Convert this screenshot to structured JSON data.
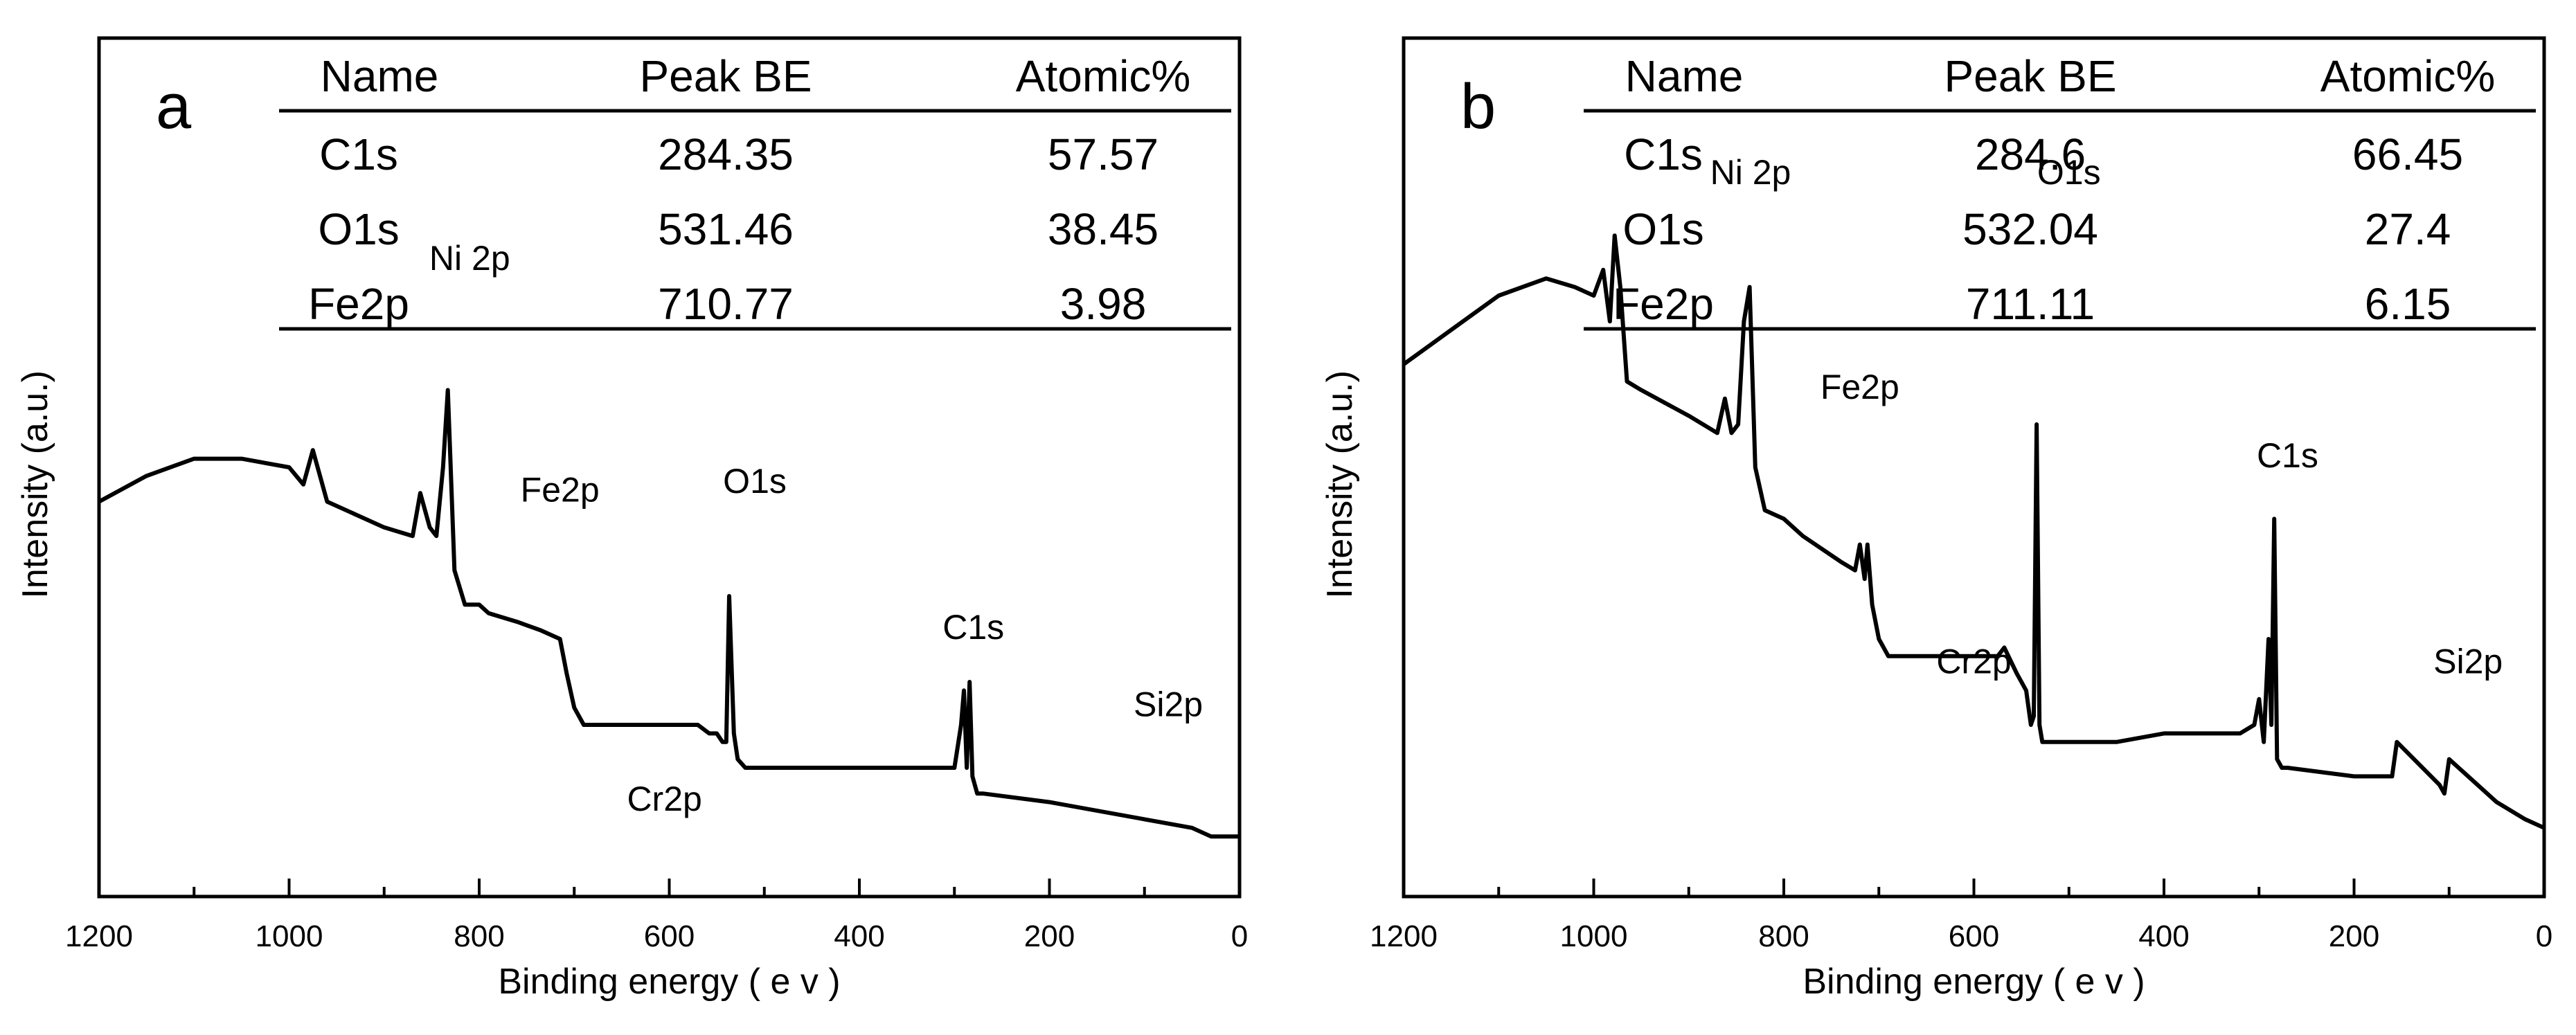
{
  "chart_data": [
    {
      "panel": "a",
      "type": "line",
      "xlabel": "Binding energy ( e v )",
      "ylabel": "Intensity (a.u.)",
      "xlim": [
        1200,
        0
      ],
      "xticks": [
        "1200",
        "1000",
        "800",
        "600",
        "400",
        "200",
        "0"
      ],
      "yticks_shown": false,
      "grid": false,
      "line_color": "#000000",
      "series": [
        {
          "x": [
            1200,
            1150,
            1100,
            1050,
            1000,
            985,
            975,
            960,
            900,
            870,
            862,
            852,
            845,
            838,
            833,
            826,
            815,
            800,
            790,
            760,
            735,
            715,
            708,
            700,
            690,
            600,
            578,
            570,
            558,
            550,
            544,
            540,
            537,
            532,
            528,
            520,
            450,
            420,
            300,
            293,
            290,
            287,
            284,
            281,
            276,
            270,
            200,
            100,
            50,
            30,
            0
          ],
          "y": [
            0.46,
            0.49,
            0.51,
            0.51,
            0.5,
            0.48,
            0.52,
            0.46,
            0.43,
            0.42,
            0.47,
            0.43,
            0.42,
            0.5,
            0.59,
            0.38,
            0.34,
            0.34,
            0.33,
            0.32,
            0.31,
            0.3,
            0.26,
            0.22,
            0.2,
            0.2,
            0.2,
            0.2,
            0.19,
            0.19,
            0.18,
            0.18,
            0.35,
            0.19,
            0.16,
            0.15,
            0.15,
            0.15,
            0.15,
            0.2,
            0.24,
            0.15,
            0.25,
            0.14,
            0.12,
            0.12,
            0.11,
            0.09,
            0.08,
            0.07,
            0.07
          ]
        }
      ],
      "peak_labels": [
        {
          "text": "Ni 2p",
          "x": 810,
          "y": 0.73
        },
        {
          "text": "Fe2p",
          "x": 715,
          "y": 0.46
        },
        {
          "text": "O1s",
          "x": 510,
          "y": 0.47
        },
        {
          "text": "C1s",
          "x": 280,
          "y": 0.3
        },
        {
          "text": "Si2p",
          "x": 75,
          "y": 0.21
        },
        {
          "text": "Cr2p",
          "x": 605,
          "y": 0.1
        }
      ],
      "table": {
        "headers": [
          "Name",
          "Peak BE",
          "Atomic%"
        ],
        "rows": [
          [
            "C1s",
            "284.35",
            "57.57"
          ],
          [
            "O1s",
            "531.46",
            "38.45"
          ],
          [
            "Fe2p",
            "710.77",
            "3.98"
          ]
        ]
      }
    },
    {
      "panel": "b",
      "type": "line",
      "xlabel": "Binding energy ( e v )",
      "ylabel": "Intensity (a.u.)",
      "xlim": [
        1200,
        0
      ],
      "xticks": [
        "1200",
        "1000",
        "800",
        "600",
        "400",
        "200",
        "0"
      ],
      "yticks_shown": false,
      "grid": false,
      "line_color": "#000000",
      "series": [
        {
          "x": [
            1200,
            1150,
            1100,
            1050,
            1020,
            1000,
            990,
            983,
            978,
            972,
            965,
            950,
            900,
            870,
            862,
            855,
            848,
            842,
            836,
            830,
            820,
            800,
            780,
            740,
            725,
            720,
            715,
            712,
            707,
            700,
            690,
            600,
            575,
            568,
            555,
            545,
            540,
            537,
            534,
            531,
            528,
            520,
            450,
            400,
            320,
            305,
            300,
            295,
            290,
            287,
            284,
            281,
            276,
            270,
            200,
            160,
            155,
            110,
            105,
            100,
            50,
            20,
            0
          ],
          "y": [
            0.62,
            0.66,
            0.7,
            0.72,
            0.71,
            0.7,
            0.73,
            0.67,
            0.77,
            0.71,
            0.6,
            0.59,
            0.56,
            0.54,
            0.58,
            0.54,
            0.55,
            0.67,
            0.71,
            0.5,
            0.45,
            0.44,
            0.42,
            0.39,
            0.38,
            0.41,
            0.37,
            0.41,
            0.34,
            0.3,
            0.28,
            0.28,
            0.28,
            0.29,
            0.26,
            0.24,
            0.2,
            0.21,
            0.55,
            0.2,
            0.18,
            0.18,
            0.18,
            0.19,
            0.19,
            0.2,
            0.23,
            0.18,
            0.3,
            0.2,
            0.44,
            0.16,
            0.15,
            0.15,
            0.14,
            0.14,
            0.18,
            0.13,
            0.12,
            0.16,
            0.11,
            0.09,
            0.08
          ]
        }
      ],
      "peak_labels": [
        {
          "text": "Ni 2p",
          "x": 835,
          "y": 0.83
        },
        {
          "text": "Fe2p",
          "x": 720,
          "y": 0.58
        },
        {
          "text": "O1s",
          "x": 500,
          "y": 0.83
        },
        {
          "text": "C1s",
          "x": 270,
          "y": 0.5
        },
        {
          "text": "Si2p",
          "x": 80,
          "y": 0.26
        },
        {
          "text": "Cr2p",
          "x": 600,
          "y": 0.26
        }
      ],
      "table": {
        "headers": [
          "Name",
          "Peak BE",
          "Atomic%"
        ],
        "rows": [
          [
            "C1s",
            "284.6",
            "66.45"
          ],
          [
            "O1s",
            "532.04",
            "27.4"
          ],
          [
            "Fe2p",
            "711.11",
            "6.15"
          ]
        ]
      }
    }
  ]
}
